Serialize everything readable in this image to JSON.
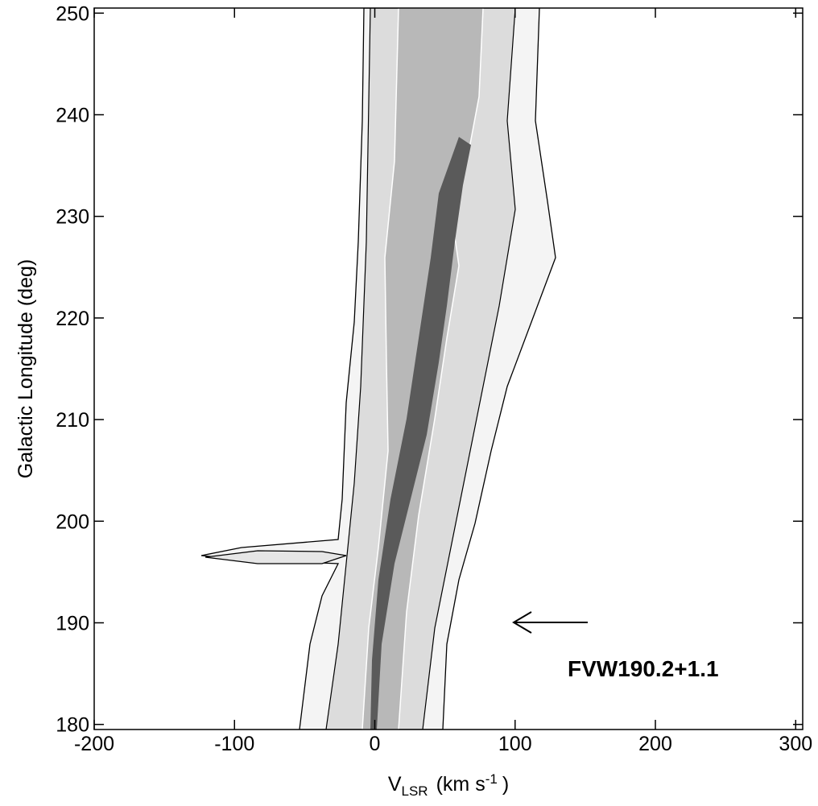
{
  "chart_data": {
    "type": "contour",
    "xlabel": {
      "text": "V",
      "subscript": "LSR",
      "units": "(km s",
      "superscript": "-1",
      "end": ")"
    },
    "ylabel": "Galactic Longitude (deg)",
    "xlim": [
      -200,
      305
    ],
    "ylim": [
      179.5,
      250.5
    ],
    "xticks": [
      -200,
      -100,
      0,
      100,
      200,
      300
    ],
    "yticks": [
      180,
      190,
      200,
      210,
      220,
      230,
      240,
      250
    ],
    "annotation": "FVW190.2+1.1"
  }
}
